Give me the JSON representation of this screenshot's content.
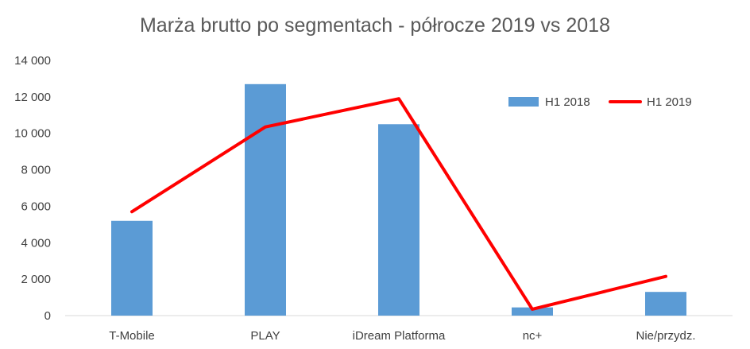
{
  "chart_data": {
    "type": "bar",
    "title": "Marża brutto po segmentach - półrocze 2019 vs 2018",
    "categories": [
      "T-Mobile",
      "PLAY",
      "iDream Platforma",
      "nc+",
      "Nie/przydz."
    ],
    "series": [
      {
        "name": "H1 2018",
        "type": "bar",
        "color": "#5B9BD5",
        "values": [
          5200,
          12700,
          10500,
          450,
          1300
        ]
      },
      {
        "name": "H1 2019",
        "type": "line",
        "color": "#FF0000",
        "values": [
          5700,
          10350,
          11900,
          350,
          2150
        ]
      }
    ],
    "ylim": [
      0,
      14000
    ],
    "yticks": [
      0,
      2000,
      4000,
      6000,
      8000,
      10000,
      12000,
      14000
    ],
    "ytick_labels": [
      "0",
      "2 000",
      "4 000",
      "6 000",
      "8 000",
      "10 000",
      "12 000",
      "14 000"
    ],
    "xlabel": "",
    "ylabel": "",
    "grid": false,
    "legend": "top-right"
  }
}
